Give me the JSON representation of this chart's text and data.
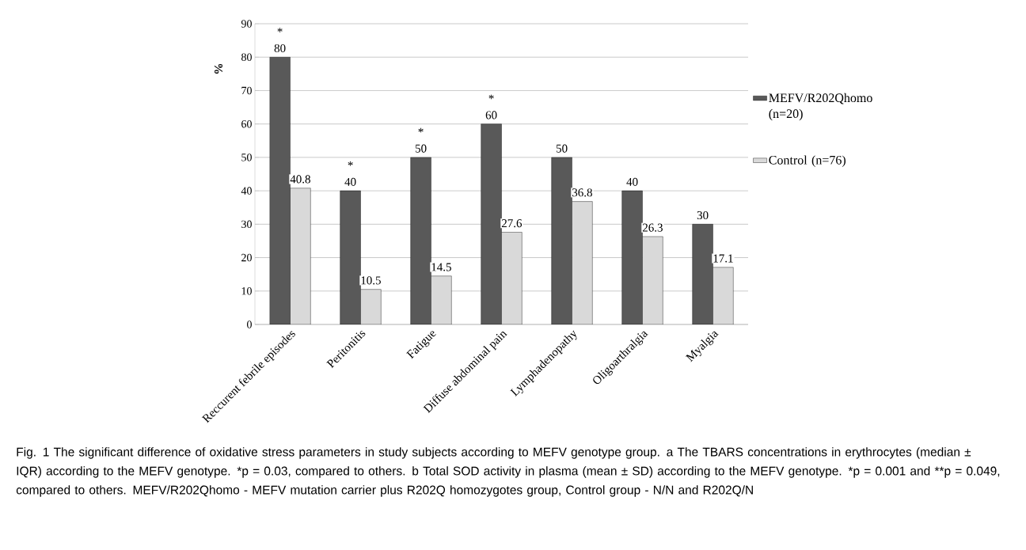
{
  "chart_data": {
    "type": "bar",
    "ylabel": "%",
    "categories": [
      "Reccurent febrile episodes",
      "Peritonitis",
      "Fatigue",
      "Diffuse abdominal pain",
      "Lymphadenopathy",
      "Oligoarthralgia",
      "Myalgia"
    ],
    "series": [
      {
        "name": "MEFV/R202Qhomo (n=20)",
        "color": "#595959",
        "values": [
          80,
          40,
          50,
          60,
          50,
          40,
          30
        ]
      },
      {
        "name": "Control (n=76)",
        "color": "#d9d9d9",
        "values": [
          40.8,
          10.5,
          14.5,
          27.6,
          36.8,
          26.3,
          17.1
        ]
      }
    ],
    "ylim": [
      0,
      90
    ],
    "yticks": [
      0,
      10,
      20,
      30,
      40,
      50,
      60,
      70,
      80,
      90
    ],
    "grid": "y",
    "legend": "right",
    "data_labels": true,
    "annotations": [
      {
        "text": "*",
        "x": "Reccurent febrile episodes",
        "y": 80
      },
      {
        "text": "*",
        "x": "Peritonitis",
        "y": 40
      },
      {
        "text": "*",
        "x": "Fatigue",
        "y": 50
      },
      {
        "text": "*",
        "x": "Diffuse abdominal pain",
        "y": 60
      },
      "Fig. 1 The significant difference of oxidative stress parameters in study subjects according to MEFV genotype group. a The TBARS concentrations in erythrocytes (median ± IQR) according to the MEFV genotype. *p = 0.03, compared to others. b Total SOD activity in plasma (mean ± SD) according to the MEFV genotype. *p = 0.001 and **p = 0.049, compared to others. MEFV/R202Qhomo - MEFV mutation carrier plus R202Q homozygotes group, Control group - N/N and R202Q/N"
    ]
  }
}
